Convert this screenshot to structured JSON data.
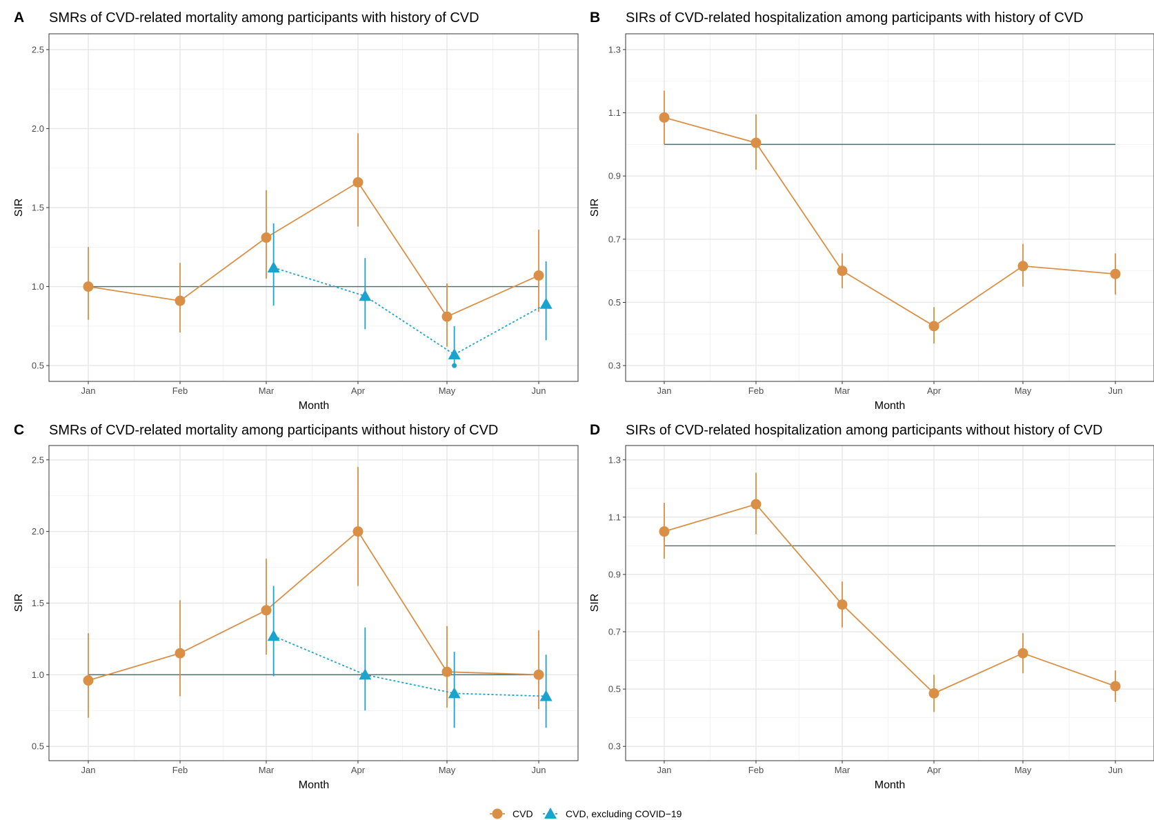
{
  "colors": {
    "cvd": "#d98f45",
    "cvd_excl": "#1aa3cc",
    "reference": "#4d6b6b",
    "grid_major": "#e6e6e6",
    "grid_minor": "#f2f2f2",
    "frame": "#333333"
  },
  "legend": {
    "items": [
      {
        "label": "CVD",
        "shape": "circle",
        "color_key": "cvd"
      },
      {
        "label": "CVD, excluding COVID−19",
        "shape": "triangle",
        "color_key": "cvd_excl"
      }
    ]
  },
  "chart_data": [
    {
      "panel": "A",
      "type": "line",
      "title": "SMRs of CVD-related mortality among participants with history of CVD",
      "xlabel": "Month",
      "ylabel": "SIR",
      "categories": [
        "Jan",
        "Feb",
        "Mar",
        "Apr",
        "May",
        "Jun"
      ],
      "ylim": [
        0.4,
        2.6
      ],
      "yticks": [
        0.5,
        1.0,
        1.5,
        2.0,
        2.5
      ],
      "ytick_labels": [
        "0.5",
        "1.0",
        "1.5",
        "2.0",
        "2.5"
      ],
      "reference_line": 1.0,
      "grid": true,
      "series": [
        {
          "name": "CVD",
          "style": "cvd",
          "x": [
            0,
            1,
            2,
            3,
            4,
            5
          ],
          "values": [
            1.0,
            0.91,
            1.31,
            1.66,
            0.81,
            1.07
          ],
          "lower": [
            0.79,
            0.71,
            1.05,
            1.38,
            0.62,
            0.84
          ],
          "upper": [
            1.25,
            1.15,
            1.61,
            1.97,
            1.02,
            1.36
          ]
        },
        {
          "name": "CVD, excluding COVID−19",
          "style": "cvd_excl",
          "x": [
            2.08,
            3.08,
            4.08,
            5.08
          ],
          "values": [
            1.12,
            0.94,
            0.57,
            0.89
          ],
          "lower": [
            0.88,
            0.73,
            0.5,
            0.66
          ],
          "upper": [
            1.4,
            1.18,
            0.75,
            1.16
          ],
          "outliers": [
            {
              "x": 4.08,
              "y": 0.5
            }
          ]
        }
      ]
    },
    {
      "panel": "B",
      "type": "line",
      "title": "SIRs of CVD-related hospitalization among participants with history of CVD",
      "xlabel": "Month",
      "ylabel": "SIR",
      "categories": [
        "Jan",
        "Feb",
        "Mar",
        "Apr",
        "May",
        "Jun"
      ],
      "ylim": [
        0.25,
        1.35
      ],
      "yticks": [
        0.3,
        0.5,
        0.7,
        0.9,
        1.1,
        1.3
      ],
      "ytick_labels": [
        "0.3",
        "0.5",
        "0.7",
        "0.9",
        "1.1",
        "1.3"
      ],
      "reference_line": 1.0,
      "grid": true,
      "series": [
        {
          "name": "CVD",
          "style": "cvd",
          "x": [
            0,
            1,
            2,
            3,
            4,
            5
          ],
          "values": [
            1.085,
            1.005,
            0.6,
            0.425,
            0.615,
            0.59
          ],
          "lower": [
            1.0,
            0.92,
            0.545,
            0.37,
            0.55,
            0.525
          ],
          "upper": [
            1.17,
            1.095,
            0.655,
            0.485,
            0.685,
            0.655
          ]
        }
      ]
    },
    {
      "panel": "C",
      "type": "line",
      "title": "SMRs of CVD-related mortality among participants without history of CVD",
      "xlabel": "Month",
      "ylabel": "SIR",
      "categories": [
        "Jan",
        "Feb",
        "Mar",
        "Apr",
        "May",
        "Jun"
      ],
      "ylim": [
        0.4,
        2.6
      ],
      "yticks": [
        0.5,
        1.0,
        1.5,
        2.0,
        2.5
      ],
      "ytick_labels": [
        "0.5",
        "1.0",
        "1.5",
        "2.0",
        "2.5"
      ],
      "reference_line": 1.0,
      "grid": true,
      "series": [
        {
          "name": "CVD",
          "style": "cvd",
          "x": [
            0,
            1,
            2,
            3,
            4,
            5
          ],
          "values": [
            0.96,
            1.15,
            1.45,
            2.0,
            1.02,
            1.0
          ],
          "lower": [
            0.7,
            0.85,
            1.14,
            1.62,
            0.77,
            0.76
          ],
          "upper": [
            1.29,
            1.52,
            1.81,
            2.45,
            1.34,
            1.31
          ]
        },
        {
          "name": "CVD, excluding COVID−19",
          "style": "cvd_excl",
          "x": [
            2.08,
            3.08,
            4.08,
            5.08
          ],
          "values": [
            1.27,
            1.0,
            0.87,
            0.85
          ],
          "lower": [
            0.99,
            0.75,
            0.63,
            0.63
          ],
          "upper": [
            1.62,
            1.33,
            1.16,
            1.14
          ]
        }
      ]
    },
    {
      "panel": "D",
      "type": "line",
      "title": "SIRs of CVD-related hospitalization among participants without history of CVD",
      "xlabel": "Month",
      "ylabel": "SIR",
      "categories": [
        "Jan",
        "Feb",
        "Mar",
        "Apr",
        "May",
        "Jun"
      ],
      "ylim": [
        0.25,
        1.35
      ],
      "yticks": [
        0.3,
        0.5,
        0.7,
        0.9,
        1.1,
        1.3
      ],
      "ytick_labels": [
        "0.3",
        "0.5",
        "0.7",
        "0.9",
        "1.1",
        "1.3"
      ],
      "reference_line": 1.0,
      "grid": true,
      "series": [
        {
          "name": "CVD",
          "style": "cvd",
          "x": [
            0,
            1,
            2,
            3,
            4,
            5
          ],
          "values": [
            1.05,
            1.145,
            0.795,
            0.485,
            0.625,
            0.51
          ],
          "lower": [
            0.955,
            1.04,
            0.715,
            0.42,
            0.555,
            0.455
          ],
          "upper": [
            1.15,
            1.255,
            0.875,
            0.55,
            0.695,
            0.565
          ]
        }
      ]
    }
  ]
}
